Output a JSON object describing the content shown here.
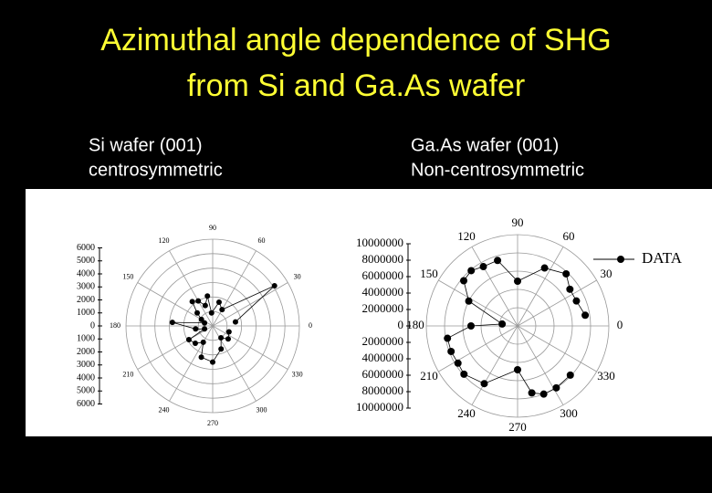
{
  "title_lines": [
    "Azimuthal angle dependence of SHG",
    "from Si and Ga.As wafer"
  ],
  "chart_data": [
    {
      "type": "polar",
      "title_lines": [
        "Si wafer (001)",
        "centrosymmetric"
      ],
      "rlim": [
        0,
        6000
      ],
      "rticks": [
        0,
        1000,
        2000,
        3000,
        4000,
        5000,
        6000
      ],
      "angle_ticks": [
        0,
        30,
        60,
        90,
        120,
        150,
        180,
        210,
        240,
        270,
        300,
        330
      ],
      "color": "#000000",
      "series": [
        {
          "theta": [
            10,
            33,
            60,
            75,
            95,
            100,
            110,
            120,
            130,
            140,
            150,
            160,
            175,
            190,
            200,
            210,
            225,
            240,
            250,
            270,
            290,
            305,
            320,
            340
          ],
          "values": [
            1600,
            5100,
            1300,
            1700,
            900,
            2100,
            1500,
            2000,
            2200,
            1400,
            900,
            600,
            2800,
            1200,
            600,
            1900,
            1700,
            1300,
            2300,
            2500,
            1700,
            1000,
            1400,
            1200
          ]
        }
      ]
    },
    {
      "type": "polar",
      "title_lines": [
        "Ga.As wafer (001)",
        "Non-centrosymmetric"
      ],
      "rlim": [
        0,
        10000000
      ],
      "rticks": [
        0,
        2000000,
        4000000,
        6000000,
        8000000,
        10000000
      ],
      "angle_ticks": [
        0,
        30,
        60,
        90,
        120,
        150,
        180,
        210,
        240,
        270,
        300,
        330
      ],
      "color": "#000000",
      "legend": "upper right",
      "series": [
        {
          "name": "DATA",
          "theta": [
            9,
            23,
            35,
            47,
            65,
            90,
            107,
            120,
            130,
            140,
            153,
            173,
            180,
            190,
            201,
            212,
            222,
            240,
            270,
            282,
            291,
            302,
            317
          ],
          "values": [
            7500000,
            7000000,
            7000000,
            7800000,
            7000000,
            4900000,
            7500000,
            7500000,
            7900000,
            7700000,
            6000000,
            1700000,
            5100000,
            7800000,
            7800000,
            7700000,
            7900000,
            7300000,
            4800000,
            7500000,
            8000000,
            8000000,
            7900000
          ]
        }
      ]
    }
  ]
}
